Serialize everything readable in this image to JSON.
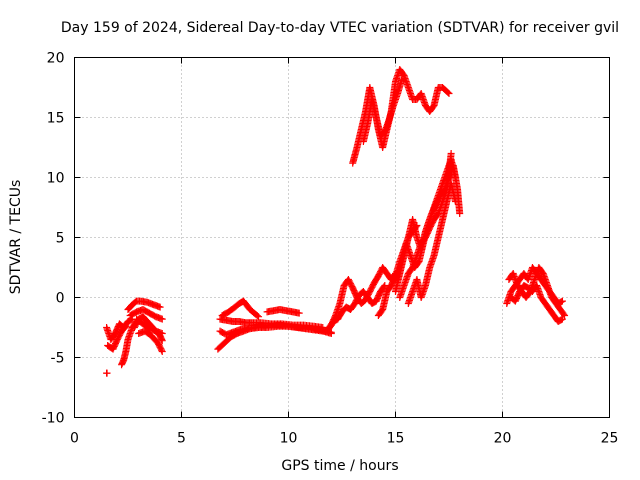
{
  "chart_data": {
    "type": "scatter",
    "title": "Day 159 of 2024, Sidereal Day-to-day VTEC variation (SDTVAR) for receiver gvil",
    "xlabel": "GPS time / hours",
    "ylabel": "SDTVAR / TECUs",
    "xlim": [
      0,
      25
    ],
    "ylim": [
      -10,
      20
    ],
    "x_ticks": [
      0,
      5,
      10,
      15,
      20,
      25
    ],
    "y_ticks": [
      -10,
      -5,
      0,
      5,
      10,
      15,
      20
    ],
    "grid": true,
    "legend": "none",
    "marker": "plus",
    "color": "#ff0000",
    "tracks": [
      {
        "x": [
          1.5,
          1.52
        ],
        "y": [
          -6.3,
          -6.3
        ]
      },
      {
        "x": [
          1.5,
          1.7,
          1.9,
          2.1,
          2.3,
          2.5,
          2.7
        ],
        "y": [
          -2.5,
          -3.5,
          -3.0,
          -2.2,
          -2.5,
          -2.0,
          -1.8
        ]
      },
      {
        "x": [
          1.55,
          1.8,
          2.0,
          2.2,
          2.4
        ],
        "y": [
          -4.0,
          -4.3,
          -3.5,
          -2.8,
          -2.4
        ]
      },
      {
        "x": [
          2.2,
          2.3,
          2.4,
          2.5,
          2.7,
          2.9
        ],
        "y": [
          -5.6,
          -5.2,
          -4.5,
          -3.5,
          -2.5,
          -2.0
        ]
      },
      {
        "x": [
          2.5,
          2.7,
          2.9,
          3.1,
          3.4,
          3.7,
          4.0
        ],
        "y": [
          -1.0,
          -0.6,
          -0.3,
          -0.3,
          -0.4,
          -0.6,
          -0.8
        ]
      },
      {
        "x": [
          2.6,
          2.9,
          3.2,
          3.5,
          3.8,
          4.1
        ],
        "y": [
          -1.5,
          -1.2,
          -1.0,
          -1.3,
          -1.6,
          -1.8
        ]
      },
      {
        "x": [
          2.8,
          3.0,
          3.2,
          3.4,
          3.6,
          3.8,
          4.0,
          4.1
        ],
        "y": [
          -2.5,
          -1.8,
          -1.6,
          -2.0,
          -2.4,
          -2.8,
          -3.2,
          -3.6
        ]
      },
      {
        "x": [
          3.0,
          3.3,
          3.6,
          3.9,
          4.1
        ],
        "y": [
          -3.0,
          -2.8,
          -3.2,
          -3.8,
          -4.5
        ]
      },
      {
        "x": [
          2.9,
          3.2,
          3.5,
          3.8,
          4.1
        ],
        "y": [
          -1.8,
          -2.2,
          -2.6,
          -2.8,
          -3.0
        ]
      },
      {
        "x": [
          6.7,
          7.0,
          7.3,
          7.6,
          7.9,
          8.2,
          8.6,
          9.0,
          9.5,
          10.0,
          10.5,
          11.0,
          11.5,
          12.0
        ],
        "y": [
          -4.3,
          -3.8,
          -3.3,
          -3.0,
          -2.8,
          -2.6,
          -2.5,
          -2.5,
          -2.4,
          -2.4,
          -2.5,
          -2.6,
          -2.7,
          -2.9
        ]
      },
      {
        "x": [
          6.8,
          7.1,
          7.4,
          7.7,
          8.0,
          8.3,
          8.7,
          9.2,
          9.7,
          10.2,
          10.7,
          11.2,
          11.6
        ],
        "y": [
          -1.8,
          -1.9,
          -2.0,
          -2.0,
          -2.1,
          -2.1,
          -2.1,
          -2.2,
          -2.2,
          -2.3,
          -2.3,
          -2.4,
          -2.5
        ]
      },
      {
        "x": [
          6.9,
          7.2,
          7.5,
          7.7,
          7.9,
          8.2,
          8.6
        ],
        "y": [
          -1.5,
          -1.2,
          -0.8,
          -0.5,
          -0.3,
          -1.0,
          -1.6
        ]
      },
      {
        "x": [
          6.8,
          7.1,
          7.4,
          7.7,
          8.0,
          8.4,
          8.8,
          9.2,
          9.6,
          10.0,
          10.4,
          10.8,
          11.2,
          11.6,
          12.0
        ],
        "y": [
          -2.8,
          -3.1,
          -2.9,
          -2.7,
          -2.6,
          -2.5,
          -2.4,
          -2.3,
          -2.3,
          -2.4,
          -2.5,
          -2.6,
          -2.7,
          -2.8,
          -3.0
        ]
      },
      {
        "x": [
          9.0,
          9.3,
          9.6,
          9.9,
          10.2,
          10.5
        ],
        "y": [
          -1.2,
          -1.1,
          -1.0,
          -1.1,
          -1.2,
          -1.3
        ]
      },
      {
        "x": [
          11.8,
          12.0,
          12.2,
          12.4,
          12.6,
          12.8,
          13.0,
          13.2,
          13.4,
          13.6,
          13.8,
          14.0,
          14.2,
          14.4,
          14.6,
          14.8,
          15.0
        ],
        "y": [
          -2.8,
          -2.3,
          -1.5,
          -0.5,
          1.0,
          1.5,
          0.8,
          0.0,
          -0.5,
          -0.2,
          0.5,
          1.2,
          1.8,
          2.5,
          2.0,
          1.5,
          2.0
        ]
      },
      {
        "x": [
          11.9,
          12.1,
          12.3,
          12.5,
          12.7,
          12.9,
          13.1,
          13.3,
          13.5,
          13.7,
          13.9,
          14.1,
          14.3,
          14.5
        ],
        "y": [
          -2.5,
          -2.0,
          -1.8,
          -1.2,
          -0.8,
          -1.0,
          -0.5,
          0.2,
          0.5,
          0.0,
          -0.5,
          -0.3,
          0.5,
          1.0
        ]
      },
      {
        "x": [
          14.2,
          14.4,
          14.6,
          14.8,
          15.0,
          15.2,
          15.4,
          15.6,
          15.8,
          16.0
        ],
        "y": [
          -1.5,
          -1.0,
          0.5,
          1.0,
          1.8,
          3.0,
          4.0,
          5.0,
          5.5,
          6.0
        ]
      },
      {
        "x": [
          15.0,
          15.2,
          15.4,
          15.6,
          15.8,
          16.0,
          16.2,
          16.4,
          16.6,
          16.8,
          17.0,
          17.2,
          17.4,
          17.6,
          17.8
        ],
        "y": [
          0.5,
          2.0,
          3.5,
          5.0,
          6.5,
          5.0,
          4.0,
          5.5,
          6.5,
          7.5,
          8.5,
          9.5,
          10.5,
          11.5,
          10.0
        ]
      },
      {
        "x": [
          15.1,
          15.3,
          15.5,
          15.7,
          15.9,
          16.1,
          16.3,
          16.5,
          16.7,
          16.9,
          17.1,
          17.3,
          17.5,
          17.7,
          17.9,
          18.0
        ],
        "y": [
          1.5,
          3.0,
          4.5,
          3.5,
          2.5,
          3.0,
          4.5,
          6.0,
          7.0,
          7.8,
          8.5,
          9.0,
          10.0,
          11.0,
          9.0,
          7.0
        ]
      },
      {
        "x": [
          15.2,
          15.4,
          15.6,
          15.8,
          16.0,
          16.2,
          16.4,
          16.6,
          16.8,
          17.0,
          17.2,
          17.4,
          17.6
        ],
        "y": [
          0.0,
          1.0,
          2.0,
          2.5,
          3.5,
          4.5,
          5.0,
          5.8,
          6.5,
          7.0,
          8.0,
          9.0,
          12.0
        ]
      },
      {
        "x": [
          15.6,
          15.8,
          16.0,
          16.2,
          16.4,
          16.6,
          16.8,
          17.0,
          17.2,
          17.4,
          17.6,
          17.8
        ],
        "y": [
          -0.5,
          0.5,
          1.5,
          0.0,
          1.0,
          2.5,
          3.5,
          5.0,
          6.5,
          8.0,
          9.5,
          8.0
        ]
      },
      {
        "x": [
          13.0,
          13.2,
          13.4,
          13.6,
          13.8,
          14.0,
          14.2,
          14.4,
          14.6,
          14.8,
          15.0,
          15.2,
          15.4,
          15.6,
          15.8,
          16.0,
          16.2,
          16.4,
          16.6,
          16.8,
          17.0,
          17.2,
          17.5
        ],
        "y": [
          11.2,
          12.5,
          14.0,
          15.5,
          17.5,
          16.0,
          14.0,
          12.5,
          14.0,
          15.5,
          18.0,
          19.0,
          18.5,
          17.5,
          16.5,
          16.5,
          17.0,
          16.0,
          15.5,
          16.0,
          17.5,
          17.5,
          17.0
        ]
      },
      {
        "x": [
          13.5,
          13.7,
          13.9,
          14.1,
          14.3,
          14.5,
          14.7,
          14.9,
          15.1,
          15.3
        ],
        "y": [
          13.0,
          14.5,
          16.5,
          15.0,
          13.5,
          13.8,
          14.8,
          16.0,
          17.0,
          18.2
        ]
      },
      {
        "x": [
          20.2,
          20.4,
          20.6,
          20.8,
          21.0,
          21.2,
          21.4,
          21.6,
          21.8,
          22.0,
          22.2,
          22.4,
          22.6,
          22.8
        ],
        "y": [
          -0.5,
          0.5,
          1.0,
          1.5,
          2.0,
          1.5,
          2.5,
          2.0,
          1.5,
          1.0,
          0.5,
          0.0,
          -0.5,
          -0.3
        ]
      },
      {
        "x": [
          20.3,
          20.5,
          20.7,
          20.9,
          21.1,
          21.3,
          21.5,
          21.7,
          21.9,
          22.1,
          22.3,
          22.5,
          22.7,
          22.9
        ],
        "y": [
          1.5,
          2.0,
          1.0,
          0.5,
          0.0,
          0.5,
          1.5,
          2.5,
          2.0,
          1.0,
          0.0,
          -0.5,
          -1.0,
          -1.5
        ]
      },
      {
        "x": [
          20.4,
          20.6,
          20.8,
          21.0,
          21.2,
          21.4,
          21.6,
          21.8,
          22.0,
          22.2,
          22.4,
          22.6,
          22.8
        ],
        "y": [
          0.0,
          -0.3,
          0.5,
          1.0,
          0.8,
          0.5,
          1.0,
          0.0,
          -0.5,
          -1.0,
          -1.5,
          -2.0,
          -1.8
        ]
      }
    ]
  }
}
